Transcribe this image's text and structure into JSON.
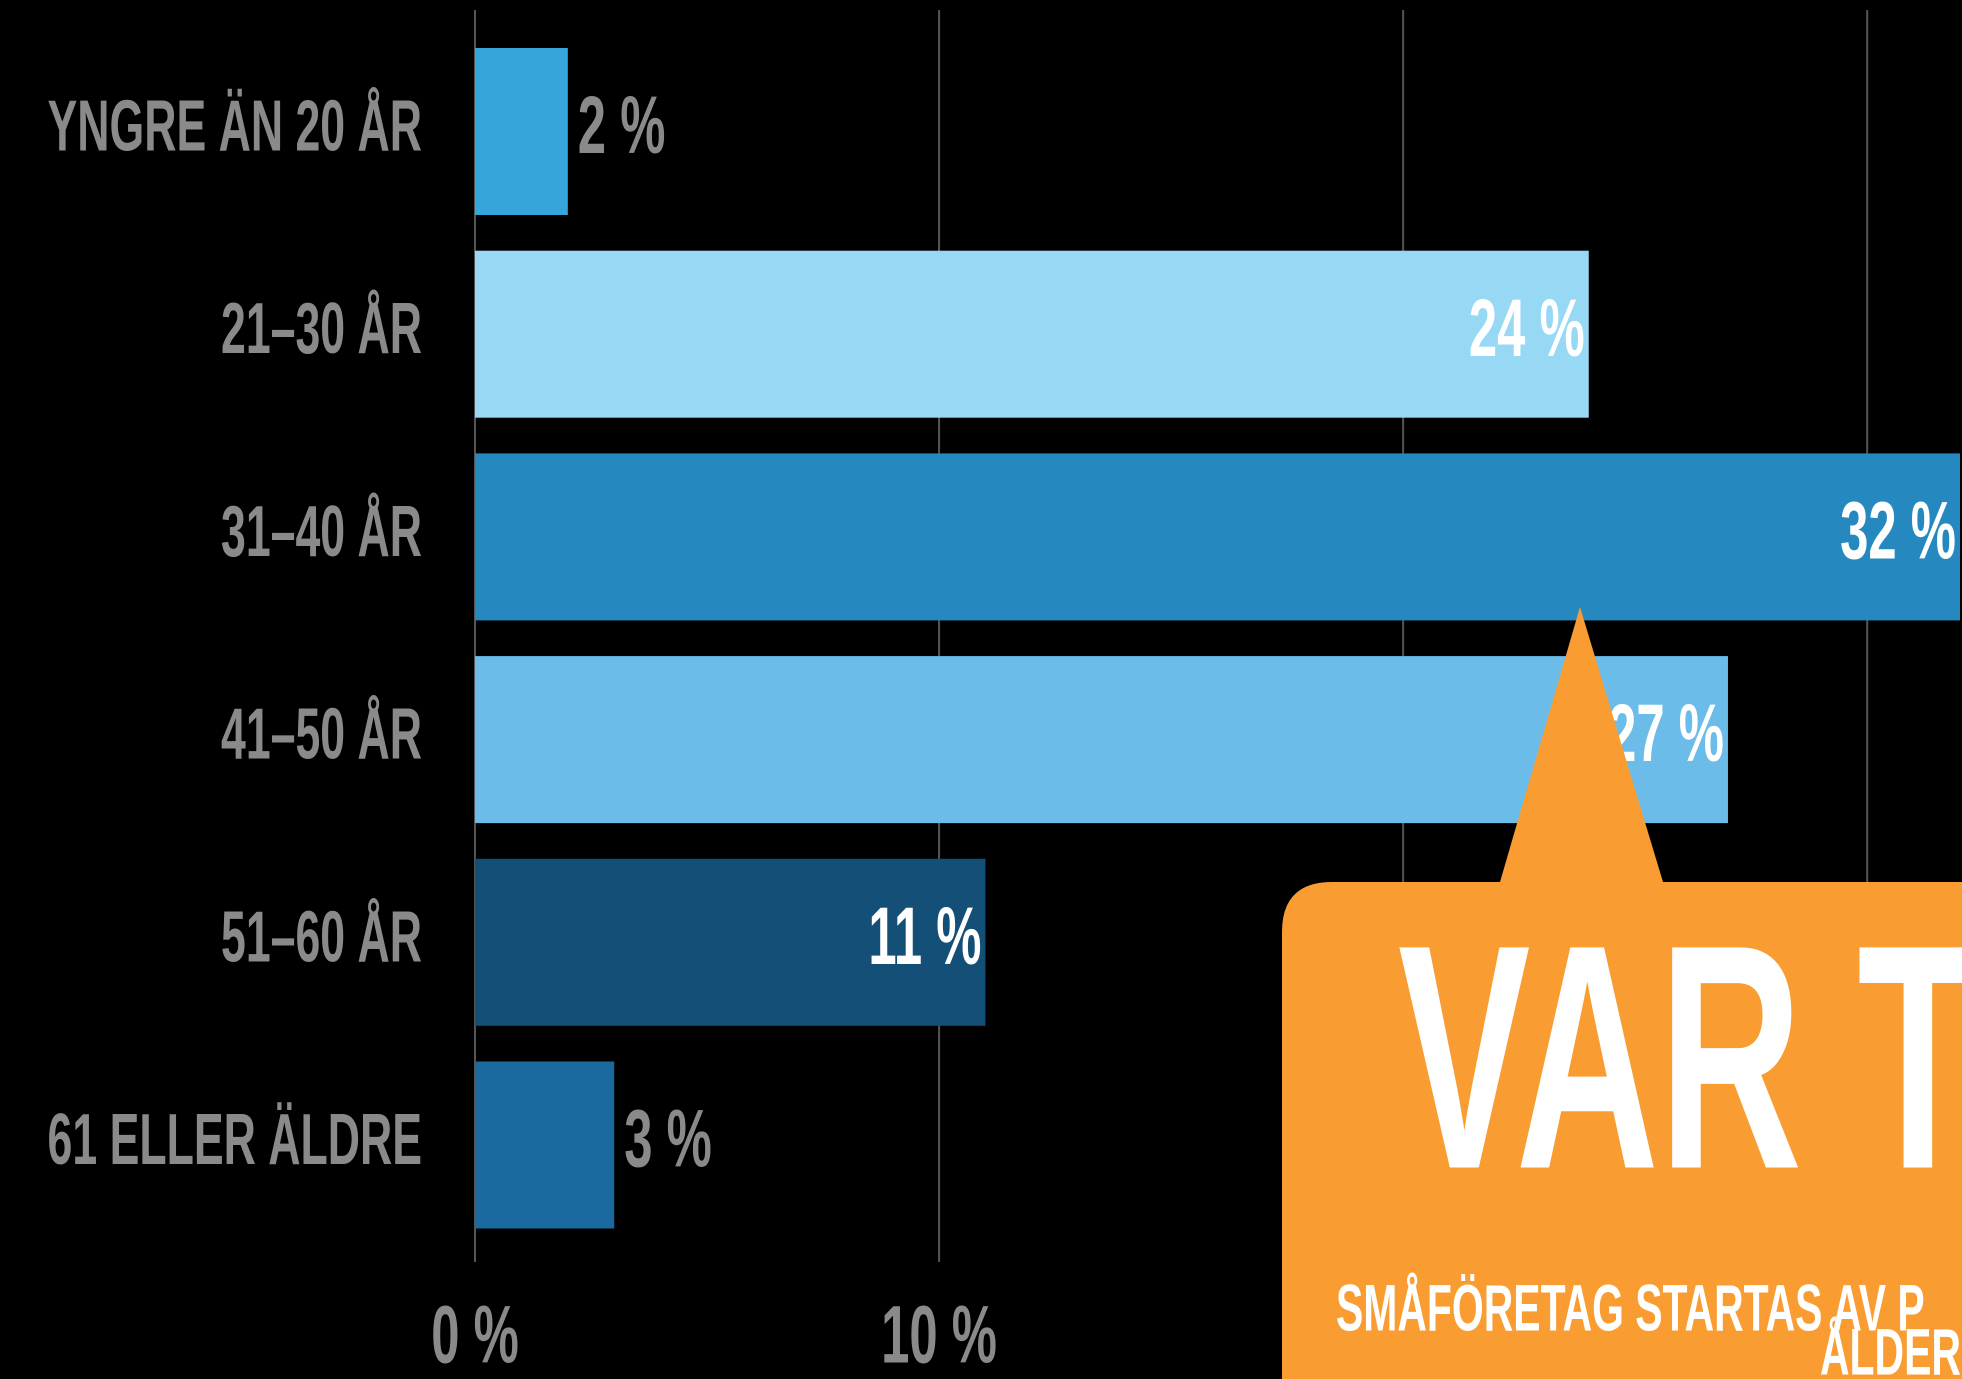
{
  "chart_data": {
    "type": "bar",
    "orientation": "horizontal",
    "categories": [
      "YNGRE ÄN 20 ÅR",
      "21–30 ÅR",
      "31–40 ÅR",
      "41–50 ÅR",
      "51–60 ÅR",
      "61 ELLER ÄLDRE"
    ],
    "values": [
      2,
      24,
      32,
      27,
      11,
      3
    ],
    "value_labels": [
      "2 %",
      "24 %",
      "32 %",
      "27 %",
      "11 %",
      "3 %"
    ],
    "colors": [
      "#35a6dc",
      "#97d8f4",
      "#2589c0",
      "#6bbce8",
      "#134f77",
      "#1a6aa0"
    ],
    "xlim": [
      0,
      32
    ],
    "xticks": [
      {
        "value": 0,
        "label": "0 %"
      },
      {
        "value": 10,
        "label": "10 %"
      },
      20,
      30
    ],
    "grid": true,
    "annotation": {
      "title": "VAR TR",
      "subtitle": "SMÅFÖRETAG STARTAS AV P",
      "subtitle_line2": "ÅLDER"
    }
  }
}
